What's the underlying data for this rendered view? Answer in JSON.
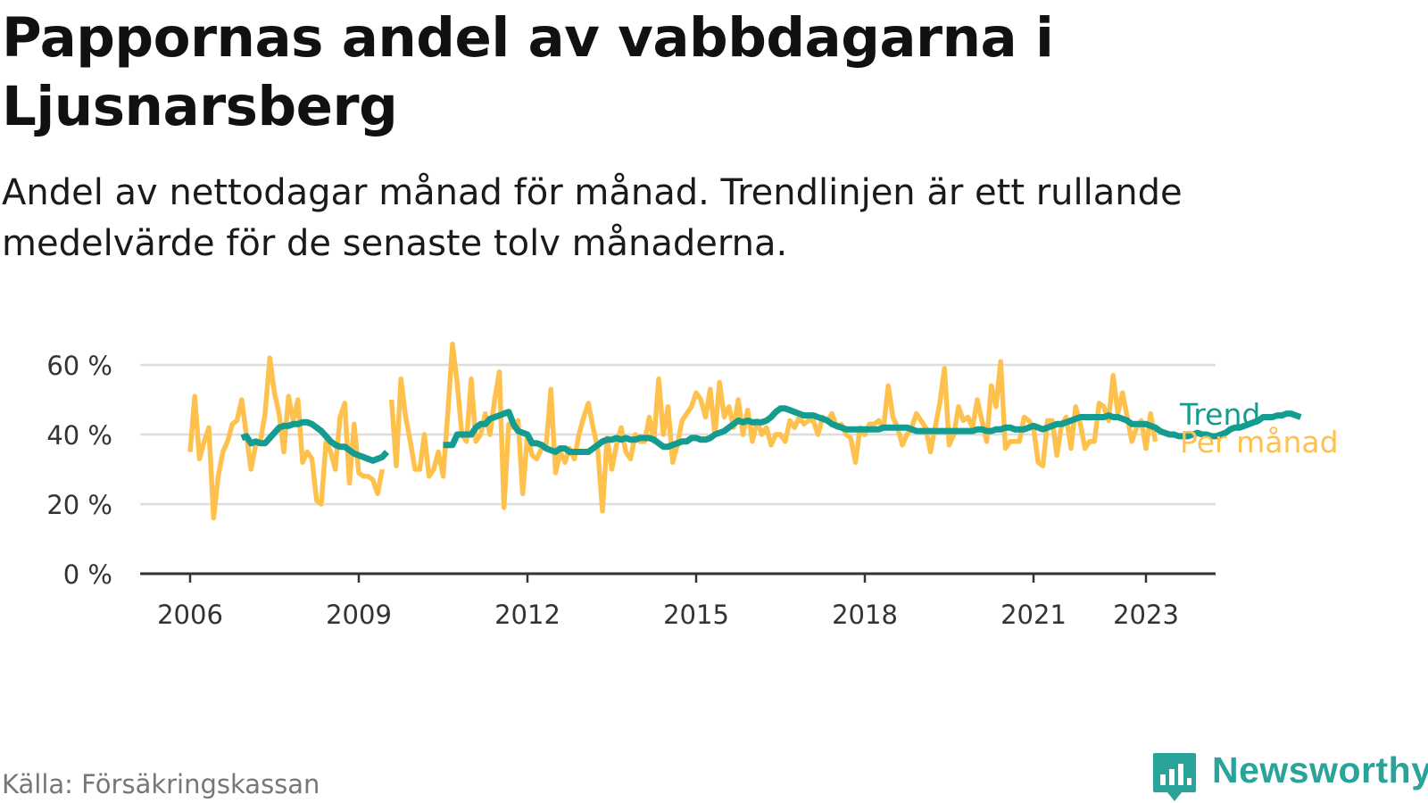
{
  "title": "Pappornas andel av vabbdagarna i Ljusnarsberg",
  "subtitle": "Andel av nettodagar månad för månad. Trendlinjen är ett rullande medelvärde för de senaste tolv månaderna.",
  "source": "Källa: Försäkringskassan",
  "logo_text": "Newsworthy",
  "colors": {
    "trend": "#139c8f",
    "monthly": "#ffc14d",
    "grid": "#dddddd",
    "axis": "#333333",
    "logo": "#2aa39a"
  },
  "chart_data": {
    "type": "line",
    "title": "Pappornas andel av vabbdagarna i Ljusnarsberg",
    "ylabel": "",
    "xlabel": "",
    "ylim": [
      0,
      65
    ],
    "yticks": [
      0,
      20,
      40,
      60
    ],
    "ytick_labels": [
      "0 %",
      "20 %",
      "40 %",
      "60 %"
    ],
    "xlim": [
      2005.2,
      2024.2
    ],
    "xticks": [
      2006,
      2009,
      2012,
      2015,
      2018,
      2021,
      2023
    ],
    "xtick_labels": [
      "2006",
      "2009",
      "2012",
      "2015",
      "2018",
      "2021",
      "2023"
    ],
    "grid": true,
    "legend": "direct labels at line ends (right)",
    "series": [
      {
        "name": "Per månad",
        "color": "#ffc14d",
        "segments": [
          {
            "start": 2006.0,
            "values": [
              35,
              51,
              33,
              38,
              42,
              16,
              28,
              35,
              38,
              43,
              44,
              50,
              40,
              30,
              37,
              38,
              46,
              62,
              52,
              46,
              35,
              51,
              44,
              50,
              32,
              35,
              33,
              21,
              20,
              38,
              35,
              30,
              45,
              49,
              26,
              43,
              29,
              28,
              28,
              27,
              23,
              30
            ]
          },
          {
            "start": 2009.5833,
            "values": [
              50,
              31,
              56,
              45,
              38,
              30,
              30,
              40,
              28,
              30,
              35,
              28,
              46,
              66,
              55,
              40,
              38,
              56,
              38,
              40,
              46,
              40,
              50,
              58,
              19,
              43,
              42,
              44,
              23,
              40,
              34,
              33,
              36,
              37,
              53,
              29,
              35,
              32,
              36,
              33,
              40,
              45,
              49,
              42,
              36,
              18,
              39,
              30,
              37,
              42,
              35,
              33,
              40,
              38,
              38,
              45,
              38,
              56,
              40,
              48,
              32,
              37,
              44,
              46,
              48,
              52,
              50,
              45,
              53,
              40,
              55,
              45,
              48,
              42,
              50,
              40,
              47,
              38,
              44,
              40,
              42,
              37,
              40,
              40,
              38,
              44,
              42,
              45,
              43,
              44,
              44,
              40,
              45,
              44,
              46,
              42,
              43,
              40,
              39,
              32,
              42,
              40,
              43,
              43,
              44,
              42,
              54,
              45,
              42,
              37,
              40,
              42,
              46,
              44,
              42,
              35,
              42,
              49,
              59,
              37,
              40,
              48,
              44,
              45,
              42,
              50,
              44,
              38,
              54,
              48,
              61,
              36,
              38,
              38,
              38,
              45,
              44,
              42,
              32,
              31,
              44,
              44,
              34,
              43,
              45,
              36,
              48,
              43,
              36,
              38,
              38,
              49,
              48,
              44,
              57,
              46,
              52,
              45,
              38,
              42,
              44,
              36,
              46,
              38
            ]
          }
        ]
      },
      {
        "name": "Trend",
        "color": "#139c8f",
        "segments": [
          {
            "start": 2006.9167,
            "values": [
              39,
              39.5,
              37.5,
              38,
              37.5,
              37.5,
              39,
              40.5,
              42,
              42.5,
              42.5,
              43,
              43,
              43.5,
              43.5,
              43,
              42,
              41,
              39.5,
              38,
              37,
              36.5,
              36.5,
              35.5,
              34.5,
              34,
              33.5,
              33,
              32.5,
              33,
              33.5,
              35
            ]
          },
          {
            "start": 2010.5,
            "values": [
              37,
              37,
              37,
              40,
              40,
              40,
              40,
              42,
              43,
              43,
              44.5,
              45,
              45.5,
              46,
              46.5,
              43,
              41,
              40.5,
              40,
              37.5,
              37.5,
              37,
              36,
              35.5,
              35,
              36,
              36,
              35,
              35,
              35,
              35,
              35,
              36,
              37,
              38,
              38.5,
              38.5,
              39,
              38.5,
              39,
              38.5,
              38.5,
              39,
              39,
              39,
              38.5,
              37.5,
              36.5,
              36.5,
              37,
              37.5,
              38,
              38,
              39,
              39,
              38.5,
              38.5,
              39,
              40,
              40.5,
              41,
              42,
              43,
              44,
              43.5,
              44,
              43.5,
              43.5,
              43.5,
              44,
              45,
              46.5,
              47.5,
              47.5,
              47,
              46.5,
              46,
              45.5,
              45.5,
              45.5,
              45,
              44.5,
              44,
              43,
              42.5,
              42,
              41.5,
              41.5,
              41.5,
              41.5,
              41.5,
              41.5,
              41.5,
              41.5,
              42,
              42,
              42,
              42,
              42,
              42,
              41.5,
              41,
              41,
              41,
              41,
              41,
              41,
              41,
              41,
              41,
              41,
              41,
              41,
              41,
              41.5,
              41.5,
              41,
              41,
              41.5,
              41.5,
              42,
              42,
              41.5,
              41.5,
              41.5,
              42,
              42.5,
              42,
              41.5,
              42,
              42.5,
              43,
              43,
              43.5,
              44,
              44.5,
              45,
              45,
              45,
              45,
              45,
              45,
              45.5,
              45,
              45,
              44.5,
              44,
              43,
              43,
              43,
              43,
              42.5,
              42,
              41,
              40.5,
              40,
              40,
              39.5,
              39.5,
              39.5,
              40,
              40.5,
              40,
              40,
              39.5,
              39.5,
              40,
              40.5,
              41.5,
              42,
              42,
              42.5,
              43,
              43.5,
              44,
              45,
              45,
              45,
              45.5,
              45.5,
              46,
              46,
              45.5,
              45
            ]
          }
        ]
      }
    ]
  }
}
